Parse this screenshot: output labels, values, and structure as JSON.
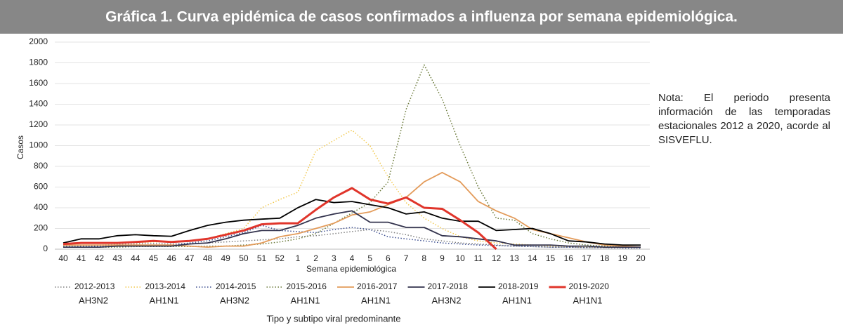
{
  "chart_data": {
    "type": "line",
    "title": "Gráfica 1. Curva epidémica de casos confirmados a influenza por semana epidemiológica.",
    "x_label": "Semana epidemiológica",
    "y_label": "Casos",
    "legend_title": "Tipo y subtipo viral predominante",
    "note": "Nota: El periodo presenta información de las temporadas estacionales 2012 a 2020, acorde al SISVEFLU.",
    "categories": [
      "40",
      "41",
      "42",
      "43",
      "44",
      "45",
      "46",
      "47",
      "48",
      "49",
      "50",
      "51",
      "52",
      "1",
      "2",
      "3",
      "4",
      "5",
      "6",
      "7",
      "8",
      "9",
      "10",
      "11",
      "12",
      "13",
      "14",
      "15",
      "16",
      "17",
      "18",
      "19",
      "20"
    ],
    "ylim": [
      0,
      2000
    ],
    "yticks": [
      0,
      200,
      400,
      600,
      800,
      1000,
      1200,
      1400,
      1600,
      1800,
      2000
    ],
    "grid": true,
    "series": [
      {
        "name": "2012-2013",
        "subtype": "AH3N2",
        "color": "#7f7f7f",
        "dashed": true,
        "width": 1.5,
        "values": [
          30,
          35,
          40,
          45,
          50,
          55,
          50,
          55,
          60,
          70,
          80,
          90,
          100,
          120,
          130,
          150,
          170,
          190,
          170,
          140,
          100,
          80,
          60,
          50,
          40,
          30,
          25,
          20,
          20,
          15,
          15,
          15,
          15
        ]
      },
      {
        "name": "2013-2014",
        "subtype": "AH1N1",
        "color": "#f2c84b",
        "dashed": true,
        "width": 1.5,
        "values": [
          50,
          60,
          60,
          60,
          60,
          70,
          70,
          80,
          100,
          150,
          200,
          400,
          480,
          550,
          950,
          1050,
          1150,
          1000,
          700,
          450,
          300,
          200,
          120,
          80,
          60,
          50,
          40,
          30,
          25,
          20,
          15,
          15,
          15
        ]
      },
      {
        "name": "2014-2015",
        "subtype": "AH3N2",
        "color": "#3b4d8f",
        "dashed": true,
        "width": 1.5,
        "values": [
          20,
          25,
          30,
          30,
          35,
          40,
          40,
          60,
          80,
          120,
          160,
          230,
          180,
          170,
          160,
          190,
          210,
          190,
          120,
          100,
          80,
          60,
          50,
          40,
          35,
          30,
          25,
          20,
          20,
          15,
          15,
          10,
          10
        ]
      },
      {
        "name": "2015-2016",
        "subtype": "AH1N1",
        "color": "#6b7a3a",
        "dashed": true,
        "width": 1.5,
        "values": [
          20,
          20,
          20,
          20,
          25,
          25,
          25,
          25,
          30,
          30,
          40,
          50,
          70,
          100,
          150,
          250,
          350,
          450,
          650,
          1350,
          1780,
          1450,
          1000,
          600,
          300,
          280,
          150,
          100,
          60,
          40,
          30,
          20,
          20
        ]
      },
      {
        "name": "2016-2017",
        "subtype": "AH1N1",
        "color": "#e39b5a",
        "dashed": false,
        "width": 1.8,
        "values": [
          40,
          40,
          40,
          40,
          40,
          40,
          40,
          30,
          20,
          30,
          30,
          60,
          120,
          150,
          200,
          250,
          330,
          360,
          430,
          500,
          650,
          740,
          650,
          460,
          370,
          300,
          190,
          150,
          110,
          70,
          40,
          30,
          20
        ]
      },
      {
        "name": "2017-2018",
        "subtype": "AH3N2",
        "color": "#33334d",
        "dashed": false,
        "width": 1.8,
        "values": [
          20,
          20,
          20,
          30,
          30,
          30,
          30,
          50,
          60,
          100,
          150,
          180,
          180,
          230,
          300,
          340,
          370,
          260,
          260,
          210,
          210,
          130,
          120,
          100,
          80,
          40,
          40,
          40,
          30,
          30,
          20,
          20,
          20
        ]
      },
      {
        "name": "2018-2019",
        "subtype": "AH1N1",
        "color": "#000000",
        "dashed": false,
        "width": 1.8,
        "values": [
          60,
          100,
          100,
          130,
          140,
          130,
          125,
          180,
          230,
          260,
          280,
          290,
          300,
          400,
          480,
          450,
          460,
          430,
          400,
          340,
          360,
          300,
          270,
          270,
          180,
          190,
          200,
          150,
          80,
          70,
          50,
          40,
          40
        ]
      },
      {
        "name": "2019-2020",
        "subtype": "AH1N1",
        "color": "#e0352b",
        "dashed": false,
        "width": 3,
        "values": [
          50,
          60,
          60,
          60,
          70,
          80,
          70,
          80,
          100,
          140,
          180,
          240,
          250,
          250,
          380,
          500,
          590,
          480,
          440,
          500,
          400,
          390,
          280,
          160,
          0,
          null,
          null,
          null,
          null,
          null,
          null,
          null,
          null
        ]
      }
    ]
  }
}
